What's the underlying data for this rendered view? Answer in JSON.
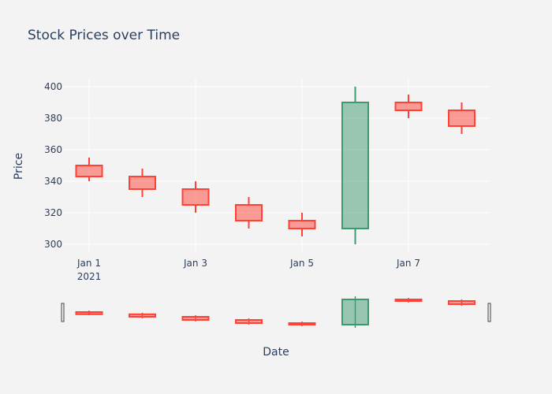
{
  "chart_data": {
    "type": "candlestick",
    "title": "Stock Prices over Time",
    "xlabel": "Date",
    "ylabel": "Price",
    "ylim": [
      295,
      405
    ],
    "y_ticks": [
      300,
      320,
      340,
      360,
      380,
      400
    ],
    "x_tick_labels": [
      {
        "day": 1,
        "label": "Jan 1",
        "sublabel": "2021"
      },
      {
        "day": 3,
        "label": "Jan 3",
        "sublabel": ""
      },
      {
        "day": 5,
        "label": "Jan 5",
        "sublabel": ""
      },
      {
        "day": 7,
        "label": "Jan 7",
        "sublabel": ""
      }
    ],
    "candles": [
      {
        "date": "2021-01-01",
        "open": 350,
        "high": 355,
        "low": 340,
        "close": 343
      },
      {
        "date": "2021-01-02",
        "open": 343,
        "high": 348,
        "low": 330,
        "close": 335
      },
      {
        "date": "2021-01-03",
        "open": 335,
        "high": 340,
        "low": 320,
        "close": 325
      },
      {
        "date": "2021-01-04",
        "open": 325,
        "high": 330,
        "low": 310,
        "close": 315
      },
      {
        "date": "2021-01-05",
        "open": 315,
        "high": 320,
        "low": 305,
        "close": 310
      },
      {
        "date": "2021-01-06",
        "open": 310,
        "high": 400,
        "low": 300,
        "close": 390
      },
      {
        "date": "2021-01-07",
        "open": 390,
        "high": 395,
        "low": 380,
        "close": 385
      },
      {
        "date": "2021-01-08",
        "open": 385,
        "high": 390,
        "low": 370,
        "close": 375
      }
    ],
    "increasing_color": "#3d9970",
    "decreasing_color": "#ff4136",
    "grid": true,
    "range_slider": true
  }
}
